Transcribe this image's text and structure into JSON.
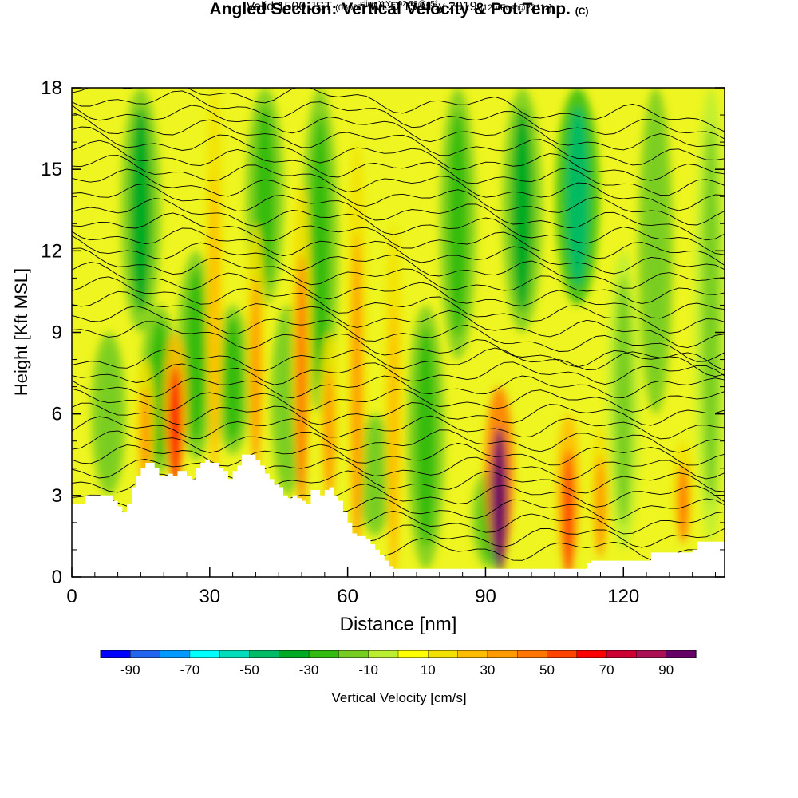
{
  "title": {
    "main": "Angled Section: Vertical Velocity & Pot.Temp.",
    "main_suffix": "(C)",
    "valid_prefix": "Valid 1500 JST",
    "valid_zulu": "(0600Z)",
    "valid_date": "WED 15 May 2019",
    "valid_forecast": "[12hrFcst@2311z]",
    "slice": "slice X,Y= 92,59@45°"
  },
  "chart_data": {
    "type": "heatmap",
    "xlabel": "Distance [nm]",
    "ylabel": "Height [Kft MSL]",
    "xlim": [
      0,
      142
    ],
    "ylim": [
      0,
      18
    ],
    "x_ticks": [
      "0",
      "30",
      "60",
      "90",
      "120"
    ],
    "y_ticks": [
      "0",
      "3",
      "6",
      "9",
      "12",
      "15",
      "18"
    ],
    "terrain": {
      "x": [
        0,
        3,
        5,
        9,
        10,
        11,
        12,
        13,
        14,
        15,
        16,
        17,
        18,
        19,
        20,
        21,
        22,
        23,
        24,
        25,
        26,
        27,
        28,
        29,
        30,
        31,
        32,
        33,
        34,
        35,
        36,
        37,
        38,
        39,
        40,
        41,
        42,
        43,
        44,
        45,
        46,
        47,
        48,
        49,
        50,
        51,
        52,
        53,
        54,
        55,
        56,
        57,
        58,
        59,
        60,
        61,
        62,
        63,
        64,
        65,
        66,
        67,
        68,
        69,
        70,
        80,
        90,
        100,
        110,
        112,
        113,
        120,
        125,
        126,
        135,
        136,
        142
      ],
      "height": [
        2.7,
        3.0,
        3.0,
        2.8,
        2.6,
        2.4,
        2.7,
        3.3,
        3.7,
        4.0,
        4.2,
        4.2,
        4.0,
        3.7,
        3.7,
        3.8,
        3.7,
        3.9,
        3.9,
        3.7,
        3.6,
        4.0,
        4.2,
        4.3,
        4.2,
        4.2,
        4.0,
        3.9,
        3.6,
        3.9,
        4.1,
        4.5,
        4.5,
        4.5,
        4.3,
        4.1,
        3.8,
        3.6,
        3.4,
        3.3,
        3.0,
        2.9,
        3.0,
        2.9,
        2.8,
        2.7,
        3.2,
        3.2,
        3.0,
        3.2,
        3.3,
        3.0,
        2.8,
        2.4,
        2.0,
        1.6,
        1.5,
        1.5,
        1.4,
        1.2,
        1.0,
        0.8,
        0.6,
        0.4,
        0.3,
        0.3,
        0.3,
        0.3,
        0.3,
        0.5,
        0.6,
        0.6,
        0.6,
        0.9,
        1.0,
        1.3,
        1.3
      ]
    },
    "updraft_columns": [
      {
        "x": 16,
        "y_bottom": 3.6,
        "y_top": 8.0,
        "value": 30
      },
      {
        "x": 22.5,
        "y_bottom": 3.8,
        "y_top": 9.0,
        "value": 60
      },
      {
        "x": 31,
        "y_bottom": 4.3,
        "y_top": 18.0,
        "value": 20
      },
      {
        "x": 40,
        "y_bottom": 4.5,
        "y_top": 13.0,
        "value": 30
      },
      {
        "x": 50,
        "y_bottom": 3.3,
        "y_top": 14.5,
        "value": 40
      },
      {
        "x": 56,
        "y_bottom": 3.2,
        "y_top": 9.0,
        "value": 30
      },
      {
        "x": 62,
        "y_bottom": 1.6,
        "y_top": 16.0,
        "value": 30
      },
      {
        "x": 70,
        "y_bottom": 0.5,
        "y_top": 13.0,
        "value": 20
      },
      {
        "x": 93,
        "y_bottom": 0.6,
        "y_top": 7.0,
        "value": 90
      },
      {
        "x": 108,
        "y_bottom": 0.4,
        "y_top": 6.0,
        "value": 55
      },
      {
        "x": 115,
        "y_bottom": 1.0,
        "y_top": 5.5,
        "value": 35
      },
      {
        "x": 133,
        "y_bottom": 1.5,
        "y_top": 5.0,
        "value": 40
      }
    ],
    "downdraft_columns": [
      {
        "x": 8,
        "y_bottom": 3.0,
        "y_top": 9.0,
        "value": -20
      },
      {
        "x": 15,
        "y_bottom": 9.0,
        "y_top": 18.0,
        "value": -35
      },
      {
        "x": 19,
        "y_bottom": 3.8,
        "y_top": 10.0,
        "value": -30
      },
      {
        "x": 27,
        "y_bottom": 4.3,
        "y_top": 12.0,
        "value": -30
      },
      {
        "x": 35,
        "y_bottom": 4.5,
        "y_top": 10.0,
        "value": -25
      },
      {
        "x": 42,
        "y_bottom": 10.0,
        "y_top": 18.0,
        "value": -30
      },
      {
        "x": 47,
        "y_bottom": 3.0,
        "y_top": 10.0,
        "value": -20
      },
      {
        "x": 54,
        "y_bottom": 6.0,
        "y_top": 18.0,
        "value": -25
      },
      {
        "x": 66,
        "y_bottom": 1.5,
        "y_top": 6.0,
        "value": -20
      },
      {
        "x": 77,
        "y_bottom": 0.3,
        "y_top": 10.0,
        "value": -30
      },
      {
        "x": 84,
        "y_bottom": 8.0,
        "y_top": 18.0,
        "value": -25
      },
      {
        "x": 91,
        "y_bottom": 0.3,
        "y_top": 4.0,
        "value": -25
      },
      {
        "x": 98,
        "y_bottom": 9.0,
        "y_top": 18.0,
        "value": -35
      },
      {
        "x": 110,
        "y_bottom": 10.0,
        "y_top": 18.0,
        "value": -45
      },
      {
        "x": 120,
        "y_bottom": 1.0,
        "y_top": 12.0,
        "value": -15
      },
      {
        "x": 127,
        "y_bottom": 6.0,
        "y_top": 18.0,
        "value": -20
      },
      {
        "x": 139,
        "y_bottom": 1.3,
        "y_top": 18.0,
        "value": -15
      }
    ],
    "theta_contours": {
      "levels_kft": [
        1.0,
        1.5,
        2.0,
        2.5,
        3.0,
        3.5,
        4.0,
        4.5,
        5.0,
        5.5,
        6.0,
        6.5,
        7.0,
        7.5,
        8.0,
        8.5,
        9.0,
        9.5,
        10.0,
        10.5,
        11.0,
        11.5,
        12.0,
        12.5,
        13.0,
        13.5,
        14.0,
        14.5,
        15.0,
        15.5,
        16.0,
        16.5,
        17.0,
        17.5
      ]
    },
    "colorbar": {
      "label": "Vertical Velocity [cm/s]",
      "tick_labels": [
        "-90",
        "-70",
        "-50",
        "-30",
        "-10",
        "10",
        "30",
        "50",
        "70",
        "90"
      ],
      "bins": [
        -100,
        -90,
        -80,
        -70,
        -60,
        -50,
        -40,
        -30,
        -20,
        -10,
        0,
        10,
        20,
        30,
        40,
        50,
        60,
        70,
        80,
        90,
        100
      ],
      "colors": [
        "#0000ff",
        "#2266ee",
        "#0099ff",
        "#00ffff",
        "#00ddbb",
        "#00bb66",
        "#00aa22",
        "#33bb11",
        "#77cc22",
        "#bbee33",
        "#ffff00",
        "#f2e000",
        "#ffbb00",
        "#ff9900",
        "#ff7700",
        "#ff4400",
        "#ff0000",
        "#cc0033",
        "#aa1155",
        "#660066"
      ]
    }
  }
}
